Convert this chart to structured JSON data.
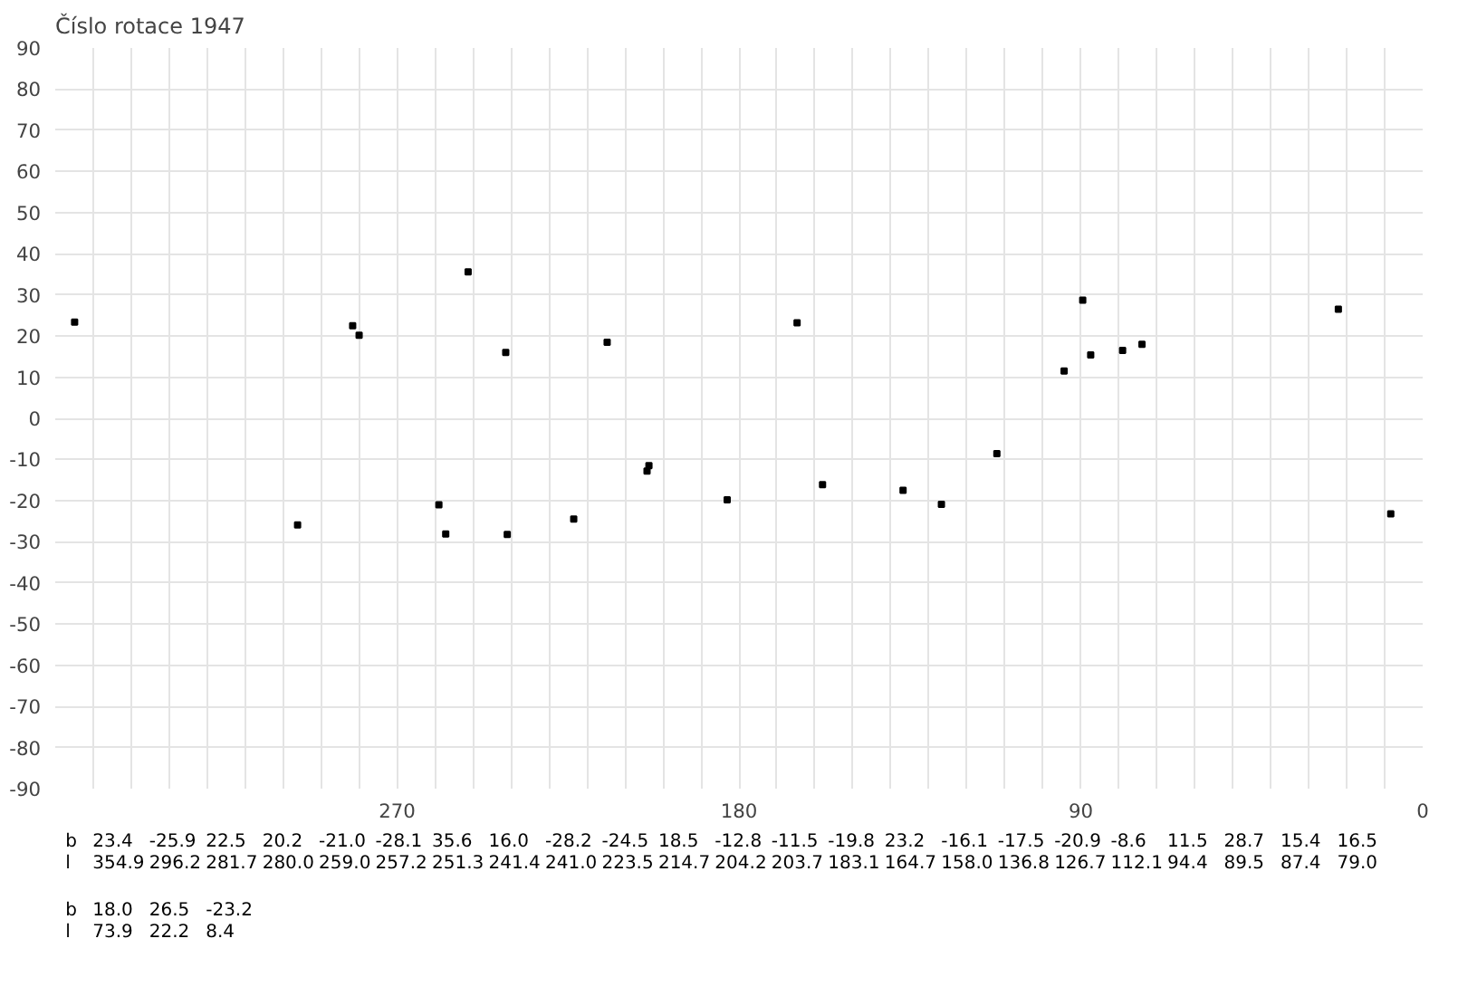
{
  "chart_data": {
    "type": "scatter",
    "title": "Číslo rotace  1947",
    "annotations": [
      "b",
      "23.4",
      "-25.9",
      "22.5",
      "20.2",
      "-21.0",
      "-28.1",
      "35.6",
      "16.0",
      "-28.2",
      "-24.5",
      "18.5",
      "-12.8",
      "-11.5",
      "-19.8",
      "23.2",
      "-16.1",
      "-17.5",
      "-20.9",
      "-8.6",
      "11.5",
      "28.7",
      "15.4",
      "16.5",
      "l",
      "354.9",
      "296.2",
      "281.7",
      "280.0",
      "259.0",
      "257.2",
      "251.3",
      "241.4",
      "241.0",
      "223.5",
      "214.7",
      "204.2",
      "203.7",
      "183.1",
      "164.7",
      "158.0",
      "136.8",
      "126.7",
      "112.1",
      "94.4",
      "89.5",
      "87.4",
      "79.0",
      "b",
      "18.0",
      "26.5",
      "-23.2",
      "l",
      "73.9",
      "22.2",
      "8.4"
    ],
    "x": [
      354.9,
      296.2,
      281.7,
      280.0,
      259.0,
      257.2,
      251.3,
      241.4,
      241.0,
      223.5,
      214.7,
      204.2,
      203.7,
      183.1,
      164.7,
      158.0,
      136.8,
      126.7,
      112.1,
      94.4,
      89.5,
      87.4,
      79.0,
      73.9,
      22.2,
      8.4
    ],
    "values": [
      23.4,
      -25.9,
      22.5,
      20.2,
      -21.0,
      -28.1,
      35.6,
      16.0,
      -28.2,
      -24.5,
      18.5,
      -12.8,
      -11.5,
      -19.8,
      23.2,
      -16.1,
      -17.5,
      -20.9,
      -8.6,
      11.5,
      28.7,
      15.4,
      16.5,
      18.0,
      26.5,
      -23.2
    ],
    "color": "#000000",
    "marker": "square",
    "grid": true,
    "xlim": [
      360,
      0
    ],
    "xticks": [
      {
        "value": 350,
        "label": null
      },
      {
        "value": 340,
        "label": null
      },
      {
        "value": 330,
        "label": null
      },
      {
        "value": 320,
        "label": null
      },
      {
        "value": 310,
        "label": null
      },
      {
        "value": 300,
        "label": null
      },
      {
        "value": 290,
        "label": null
      },
      {
        "value": 280,
        "label": null
      },
      270,
      {
        "value": 260,
        "label": null
      },
      {
        "value": 250,
        "label": null
      },
      {
        "value": 240,
        "label": null
      },
      {
        "value": 230,
        "label": null
      },
      {
        "value": 220,
        "label": null
      },
      {
        "value": 210,
        "label": null
      },
      {
        "value": 200,
        "label": null
      },
      {
        "value": 190,
        "label": null
      },
      180,
      {
        "value": 170,
        "label": null
      },
      {
        "value": 160,
        "label": null
      },
      {
        "value": 150,
        "label": null
      },
      {
        "value": 140,
        "label": null
      },
      {
        "value": 130,
        "label": null
      },
      {
        "value": 120,
        "label": null
      },
      {
        "value": 110,
        "label": null
      },
      {
        "value": 100,
        "label": null
      },
      90,
      {
        "value": 80,
        "label": null
      },
      {
        "value": 70,
        "label": null
      },
      {
        "value": 60,
        "label": null
      },
      {
        "value": 50,
        "label": null
      },
      {
        "value": 40,
        "label": null
      },
      {
        "value": 30,
        "label": null
      },
      {
        "value": 20,
        "label": null
      },
      {
        "value": 10,
        "label": null
      },
      0
    ],
    "ylim": [
      -90,
      90
    ],
    "yticks": [
      -90,
      -80,
      -70,
      -60,
      -50,
      -40,
      -30,
      -20,
      -10,
      0,
      10,
      20,
      30,
      40,
      50,
      60,
      70,
      80,
      90
    ]
  }
}
